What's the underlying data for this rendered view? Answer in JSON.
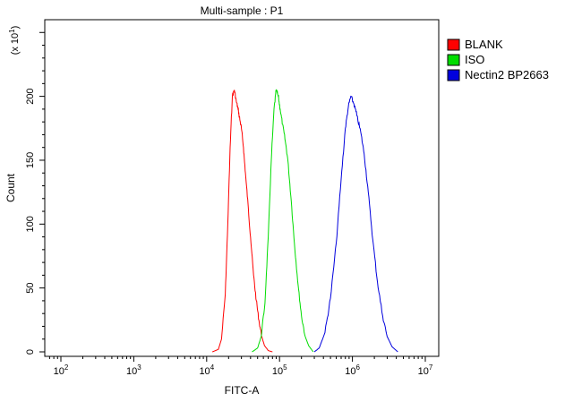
{
  "chart_data": {
    "type": "line",
    "title": "Multi-sample : P1",
    "xlabel": "FITC-A",
    "ylabel": "Count",
    "y_multiplier": "(x 10^1)",
    "x_scale": "log",
    "xlim": [
      50,
      10000000
    ],
    "ylim": [
      0,
      260
    ],
    "x_ticks": [
      100,
      1000,
      10000,
      100000,
      1000000,
      10000000
    ],
    "x_tick_labels": [
      {
        "base": "10",
        "exp": "2"
      },
      {
        "base": "10",
        "exp": "3"
      },
      {
        "base": "10",
        "exp": "4"
      },
      {
        "base": "10",
        "exp": "5"
      },
      {
        "base": "10",
        "exp": "6"
      },
      {
        "base": "10",
        "exp": "7"
      }
    ],
    "y_ticks": [
      0,
      50,
      100,
      150,
      200
    ],
    "y_tick_labels": [
      "0",
      "50",
      "100",
      "150",
      "200"
    ],
    "grid": false,
    "legend_position": "top-right",
    "series": [
      {
        "name": "BLANK",
        "color": "#ff0000",
        "points": [
          [
            12000,
            0
          ],
          [
            14500,
            2
          ],
          [
            16000,
            10
          ],
          [
            18000,
            45
          ],
          [
            19500,
            100
          ],
          [
            21000,
            160
          ],
          [
            22500,
            200
          ],
          [
            24000,
            205
          ],
          [
            25500,
            196
          ],
          [
            27000,
            190
          ],
          [
            28500,
            182
          ],
          [
            30000,
            175
          ],
          [
            32000,
            160
          ],
          [
            34000,
            140
          ],
          [
            37000,
            115
          ],
          [
            40000,
            90
          ],
          [
            44000,
            60
          ],
          [
            48000,
            40
          ],
          [
            52000,
            25
          ],
          [
            57000,
            12
          ],
          [
            62000,
            5
          ],
          [
            70000,
            1
          ],
          [
            80000,
            0
          ]
        ]
      },
      {
        "name": "ISO",
        "color": "#00dd00",
        "points": [
          [
            42000,
            0
          ],
          [
            50000,
            3
          ],
          [
            56000,
            12
          ],
          [
            63000,
            38
          ],
          [
            70000,
            90
          ],
          [
            77000,
            150
          ],
          [
            84000,
            190
          ],
          [
            90000,
            205
          ],
          [
            96000,
            200
          ],
          [
            102000,
            190
          ],
          [
            110000,
            178
          ],
          [
            120000,
            165
          ],
          [
            130000,
            150
          ],
          [
            145000,
            118
          ],
          [
            160000,
            85
          ],
          [
            180000,
            52
          ],
          [
            200000,
            28
          ],
          [
            225000,
            12
          ],
          [
            250000,
            5
          ],
          [
            290000,
            0
          ]
        ]
      },
      {
        "name": "Nectin2 BP2663",
        "color": "#0000dd",
        "points": [
          [
            300000,
            0
          ],
          [
            350000,
            3
          ],
          [
            420000,
            15
          ],
          [
            500000,
            42
          ],
          [
            600000,
            85
          ],
          [
            700000,
            135
          ],
          [
            800000,
            175
          ],
          [
            880000,
            192
          ],
          [
            950000,
            200
          ],
          [
            1050000,
            194
          ],
          [
            1150000,
            185
          ],
          [
            1300000,
            172
          ],
          [
            1450000,
            155
          ],
          [
            1650000,
            125
          ],
          [
            1900000,
            88
          ],
          [
            2200000,
            55
          ],
          [
            2600000,
            28
          ],
          [
            3000000,
            12
          ],
          [
            3500000,
            4
          ],
          [
            4200000,
            0
          ]
        ]
      }
    ]
  }
}
